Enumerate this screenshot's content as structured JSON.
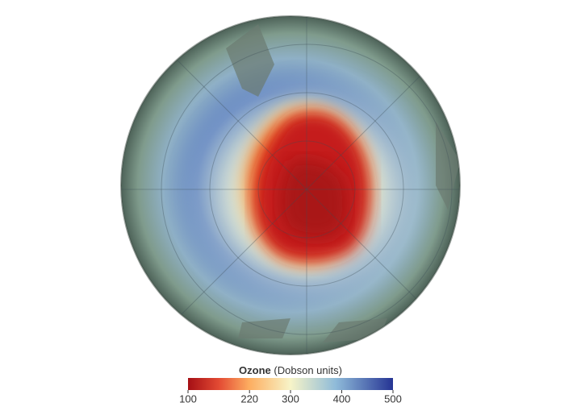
{
  "legend": {
    "title": "Ozone",
    "unit": "(Dobson units)",
    "range": [
      100,
      500
    ],
    "ticks": [
      100,
      220,
      300,
      400,
      500
    ]
  }
}
